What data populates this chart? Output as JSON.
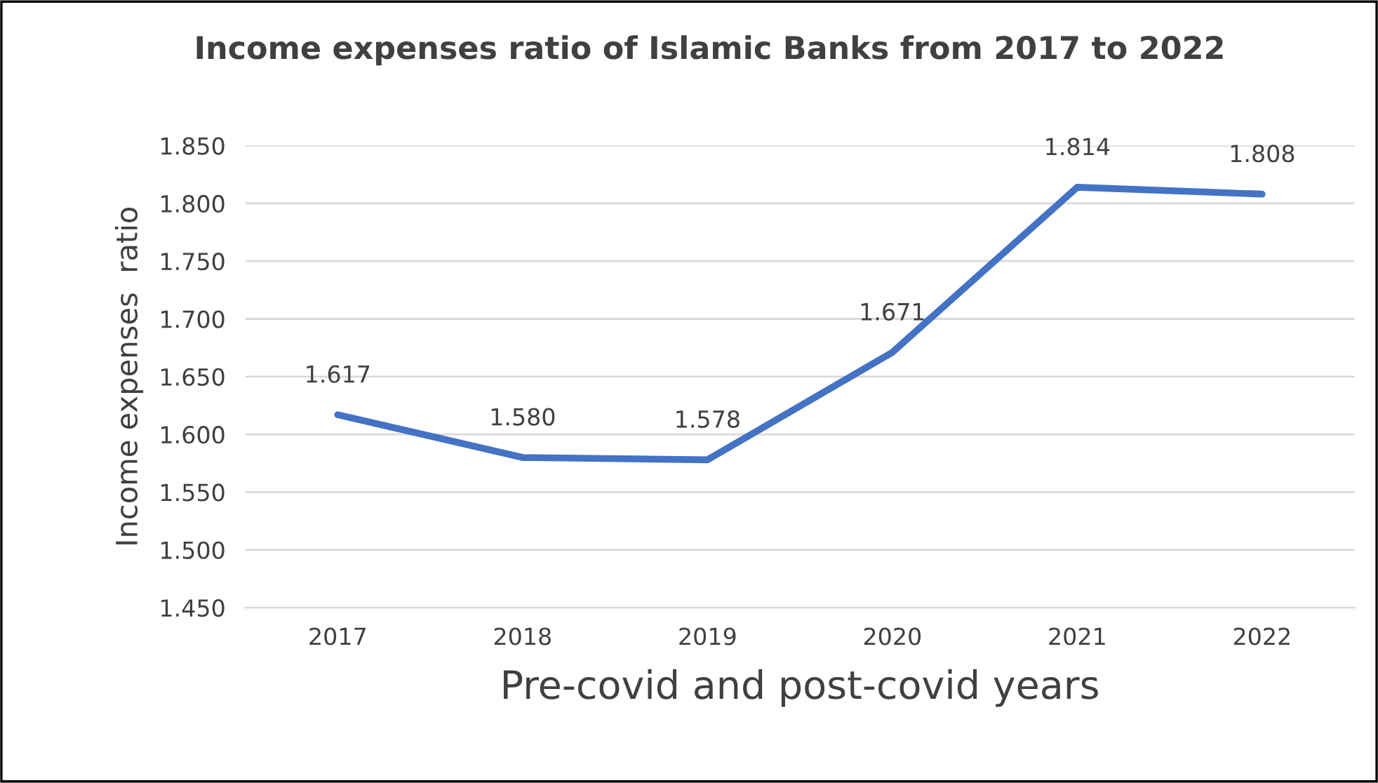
{
  "chart_data": {
    "type": "line",
    "title": "Income expenses ratio of Islamic Banks from 2017 to 2022",
    "xlabel": "Pre-covid and post-covid years",
    "ylabel": "Income expenses  ratio",
    "categories": [
      "2017",
      "2018",
      "2019",
      "2020",
      "2021",
      "2022"
    ],
    "series": [
      {
        "color": "#4472c4",
        "values": [
          1.617,
          1.58,
          1.578,
          1.671,
          1.814,
          1.808
        ],
        "value_labels": [
          "1.617",
          "1.580",
          "1.578",
          "1.671",
          "1.814",
          "1.808"
        ]
      }
    ],
    "ylim": [
      1.45,
      1.85
    ],
    "yticks": [
      {
        "value": 1.45,
        "label": "1.450"
      },
      {
        "value": 1.5,
        "label": "1.500"
      },
      {
        "value": 1.55,
        "label": "1.550"
      },
      {
        "value": 1.6,
        "label": "1.600"
      },
      {
        "value": 1.65,
        "label": "1.650"
      },
      {
        "value": 1.7,
        "label": "1.700"
      },
      {
        "value": 1.75,
        "label": "1.750"
      },
      {
        "value": 1.8,
        "label": "1.800"
      },
      {
        "value": 1.85,
        "label": "1.850"
      }
    ],
    "grid": "y",
    "marker": "none",
    "line_style": "solid"
  }
}
